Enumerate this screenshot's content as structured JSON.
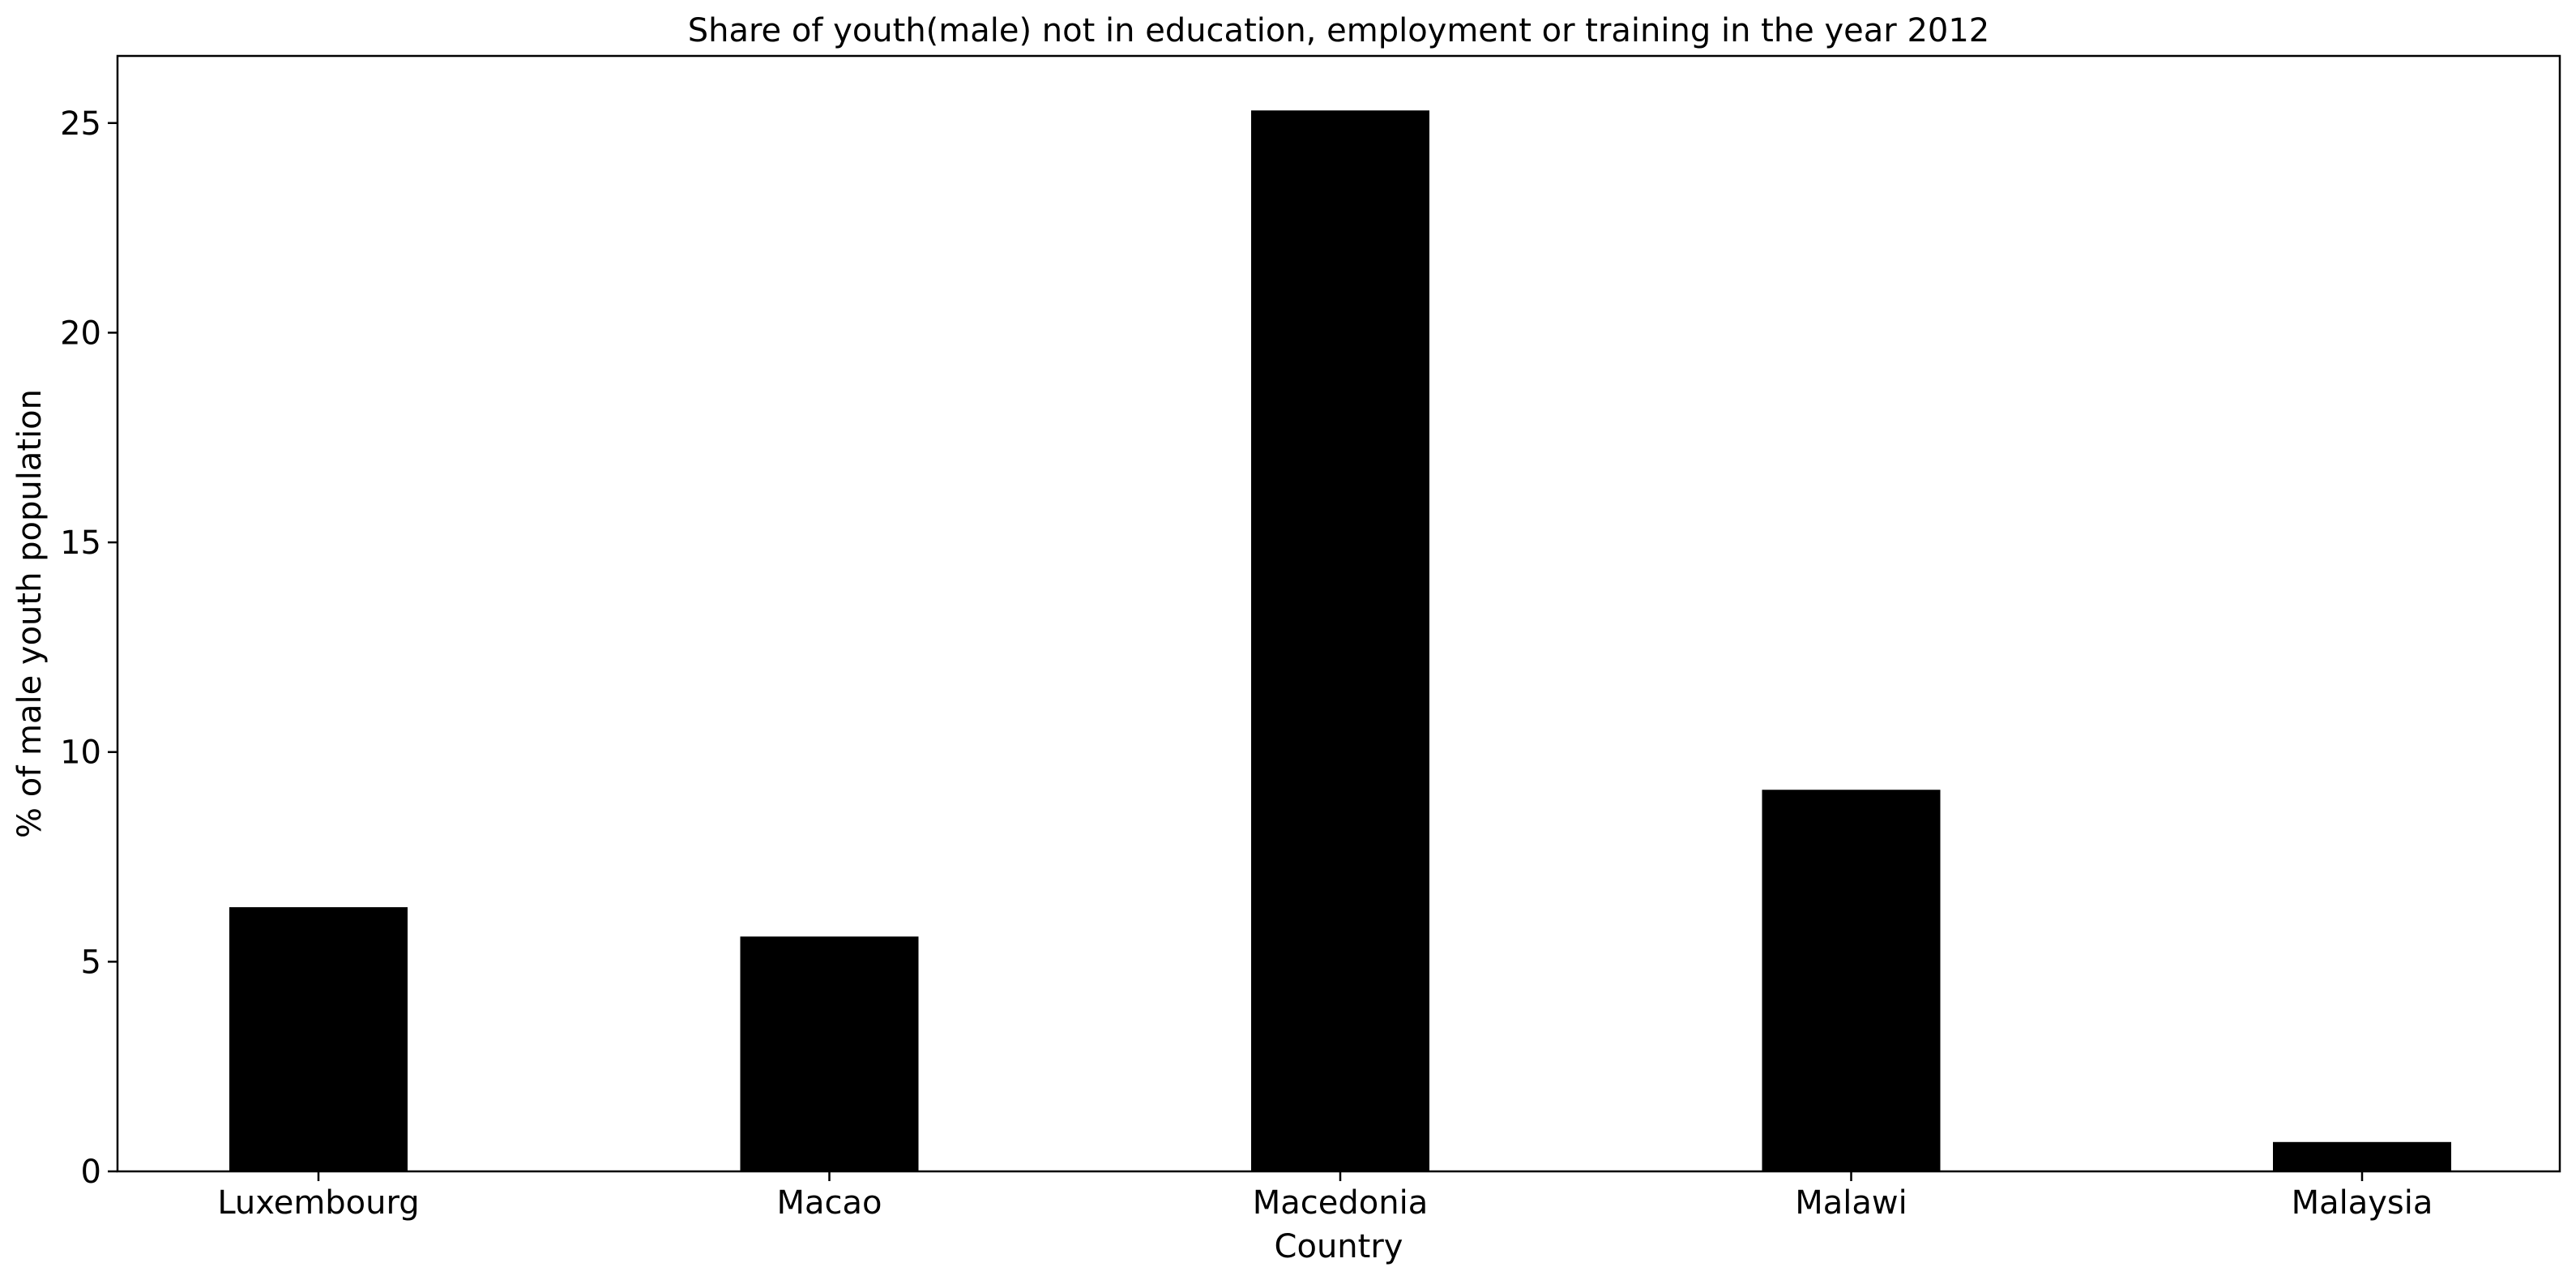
{
  "chart_data": {
    "type": "bar",
    "title": "Share of youth(male) not in education, employment or training in the year 2012",
    "xlabel": "Country",
    "ylabel": "% of male youth population",
    "categories": [
      "Luxembourg",
      "Macao",
      "Macedonia",
      "Malawi",
      "Malaysia"
    ],
    "values": [
      6.3,
      5.6,
      25.3,
      9.1,
      0.7
    ],
    "ylim": [
      0,
      26.6
    ],
    "yticks": [
      0,
      5,
      10,
      15,
      20,
      25
    ],
    "ytick_labels": [
      "0",
      "5",
      "10",
      "15",
      "20",
      "25"
    ],
    "bar_color": "#000000",
    "grid": false,
    "legend": "none"
  }
}
